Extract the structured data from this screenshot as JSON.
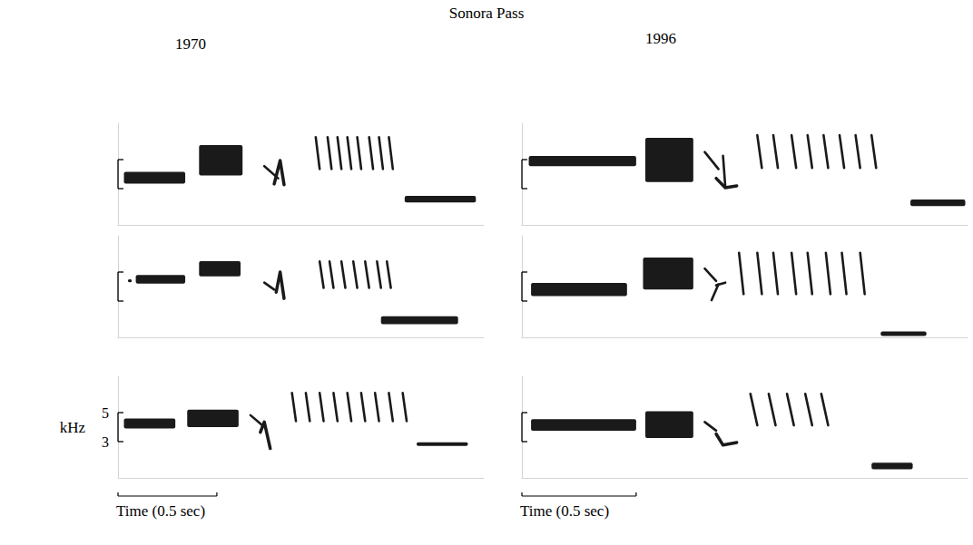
{
  "title": "Sonora Pass",
  "chart_data": [
    {
      "type": "spectrogram",
      "title": "1970",
      "color": "#1a1a1a",
      "xlim": [
        0,
        1.85
      ],
      "ylim": [
        0.5,
        7.5
      ],
      "yticks": [
        3,
        5
      ],
      "tick_labels": false,
      "bands": [
        {
          "t": [
            0.03,
            0.34
          ],
          "f": [
            3.35,
            4.15
          ]
        },
        {
          "t": [
            0.41,
            0.63
          ],
          "f": [
            3.9,
            6.0
          ]
        },
        {
          "t": [
            1.45,
            1.81
          ],
          "f": [
            2.05,
            2.5
          ]
        }
      ],
      "sweeps": [
        [
          [
            0.74,
            4.55
          ],
          [
            0.81,
            3.71
          ]
        ],
        [
          [
            0.79,
            3.32
          ],
          [
            0.82,
            4.94
          ],
          [
            0.84,
            3.26
          ]
        ],
        [
          [
            1.0,
            6.55
          ],
          [
            1.02,
            4.35
          ]
        ],
        [
          [
            1.06,
            6.55
          ],
          [
            1.08,
            4.35
          ]
        ],
        [
          [
            1.11,
            6.55
          ],
          [
            1.13,
            4.35
          ]
        ],
        [
          [
            1.16,
            6.55
          ],
          [
            1.18,
            4.35
          ]
        ],
        [
          [
            1.21,
            6.55
          ],
          [
            1.23,
            4.35
          ]
        ],
        [
          [
            1.27,
            6.55
          ],
          [
            1.29,
            4.35
          ]
        ],
        [
          [
            1.32,
            6.55
          ],
          [
            1.34,
            4.35
          ]
        ],
        [
          [
            1.37,
            6.55
          ],
          [
            1.39,
            4.35
          ]
        ]
      ]
    },
    {
      "type": "spectrogram",
      "title": "1996",
      "color": "#1a1a1a",
      "xlim": [
        0,
        1.95
      ],
      "ylim": [
        0.5,
        7.5
      ],
      "yticks": [
        3,
        5
      ],
      "tick_labels": false,
      "bands": [
        {
          "t": [
            0.03,
            0.5
          ],
          "f": [
            4.55,
            5.25
          ]
        },
        {
          "t": [
            0.54,
            0.75
          ],
          "f": [
            3.45,
            6.5
          ]
        },
        {
          "t": [
            1.7,
            1.94
          ],
          "f": [
            1.8,
            2.25
          ]
        }
      ],
      "sweeps": [
        [
          [
            0.8,
            5.52
          ],
          [
            0.86,
            4.35
          ]
        ],
        [
          [
            0.85,
            3.71
          ],
          [
            0.89,
            3.06
          ],
          [
            0.94,
            3.19
          ]
        ],
        [
          [
            0.88,
            5.26
          ],
          [
            0.89,
            3.13
          ]
        ],
        [
          [
            1.03,
            6.68
          ],
          [
            1.05,
            4.42
          ]
        ],
        [
          [
            1.1,
            6.68
          ],
          [
            1.12,
            4.42
          ]
        ],
        [
          [
            1.18,
            6.68
          ],
          [
            1.2,
            4.42
          ]
        ],
        [
          [
            1.25,
            6.68
          ],
          [
            1.27,
            4.42
          ]
        ],
        [
          [
            1.32,
            6.68
          ],
          [
            1.34,
            4.42
          ]
        ],
        [
          [
            1.39,
            6.68
          ],
          [
            1.41,
            4.42
          ]
        ],
        [
          [
            1.46,
            6.68
          ],
          [
            1.48,
            4.42
          ]
        ],
        [
          [
            1.53,
            6.68
          ],
          [
            1.55,
            4.42
          ]
        ]
      ]
    },
    {
      "type": "spectrogram",
      "color": "#1a1a1a",
      "xlim": [
        0,
        1.85
      ],
      "ylim": [
        0.5,
        7.5
      ],
      "yticks": [
        3,
        5
      ],
      "tick_labels": false,
      "bands": [
        {
          "t": [
            0.05,
            0.07
          ],
          "f": [
            4.3,
            4.5
          ]
        },
        {
          "t": [
            0.09,
            0.34
          ],
          "f": [
            4.2,
            4.8
          ]
        },
        {
          "t": [
            0.41,
            0.62
          ],
          "f": [
            4.7,
            5.75
          ]
        },
        {
          "t": [
            1.33,
            1.72
          ],
          "f": [
            1.4,
            1.95
          ]
        }
      ],
      "sweeps": [
        [
          [
            0.74,
            4.27
          ],
          [
            0.79,
            3.79
          ]
        ],
        [
          [
            0.8,
            3.61
          ],
          [
            0.82,
            5.0
          ],
          [
            0.84,
            3.18
          ]
        ],
        [
          [
            1.02,
            5.73
          ],
          [
            1.04,
            3.91
          ]
        ],
        [
          [
            1.07,
            5.73
          ],
          [
            1.09,
            3.91
          ]
        ],
        [
          [
            1.13,
            5.73
          ],
          [
            1.15,
            3.91
          ]
        ],
        [
          [
            1.19,
            5.73
          ],
          [
            1.21,
            3.91
          ]
        ],
        [
          [
            1.25,
            5.73
          ],
          [
            1.27,
            3.91
          ]
        ],
        [
          [
            1.31,
            5.73
          ],
          [
            1.33,
            3.91
          ]
        ],
        [
          [
            1.36,
            5.73
          ],
          [
            1.38,
            3.91
          ]
        ]
      ]
    },
    {
      "type": "spectrogram",
      "color": "#1a1a1a",
      "xlim": [
        0,
        1.95
      ],
      "ylim": [
        0.5,
        7.5
      ],
      "yticks": [
        3,
        5
      ],
      "tick_labels": false,
      "bands": [
        {
          "t": [
            0.04,
            0.46
          ],
          "f": [
            3.35,
            4.25
          ]
        },
        {
          "t": [
            0.53,
            0.75
          ],
          "f": [
            3.8,
            6.0
          ]
        },
        {
          "t": [
            1.57,
            1.77
          ],
          "f": [
            0.6,
            0.9
          ]
        }
      ],
      "sweeps": [
        [
          [
            0.8,
            5.24
          ],
          [
            0.85,
            4.39
          ]
        ],
        [
          [
            0.86,
            4.15
          ],
          [
            0.83,
            3.06
          ]
        ],
        [
          [
            0.85,
            4.09
          ],
          [
            0.89,
            4.27
          ]
        ],
        [
          [
            0.95,
            6.33
          ],
          [
            0.97,
            3.48
          ]
        ],
        [
          [
            1.03,
            6.33
          ],
          [
            1.05,
            3.48
          ]
        ],
        [
          [
            1.1,
            6.33
          ],
          [
            1.12,
            3.48
          ]
        ],
        [
          [
            1.18,
            6.33
          ],
          [
            1.2,
            3.48
          ]
        ],
        [
          [
            1.25,
            6.33
          ],
          [
            1.27,
            3.48
          ]
        ],
        [
          [
            1.33,
            6.33
          ],
          [
            1.35,
            3.48
          ]
        ],
        [
          [
            1.4,
            6.33
          ],
          [
            1.42,
            3.48
          ]
        ],
        [
          [
            1.48,
            6.33
          ],
          [
            1.5,
            3.48
          ]
        ]
      ]
    },
    {
      "type": "spectrogram",
      "color": "#1a1a1a",
      "ylabel": "kHz",
      "xlim": [
        0,
        1.85
      ],
      "ylim": [
        0.5,
        7.5
      ],
      "yticks": [
        3,
        5
      ],
      "tick_labels": "y",
      "scale_bar": {
        "x": [
          0,
          0.5
        ],
        "label": "Time (0.5 sec)"
      },
      "bands": [
        {
          "t": [
            0.03,
            0.29
          ],
          "f": [
            3.9,
            4.6
          ]
        },
        {
          "t": [
            0.35,
            0.61
          ],
          "f": [
            4.0,
            5.2
          ]
        },
        {
          "t": [
            1.51,
            1.77
          ],
          "f": [
            2.7,
            2.95
          ]
        }
      ],
      "sweeps": [
        [
          [
            0.67,
            4.82
          ],
          [
            0.73,
            4.12
          ]
        ],
        [
          [
            0.72,
            3.65
          ],
          [
            0.74,
            4.35
          ],
          [
            0.77,
            2.53
          ]
        ],
        [
          [
            0.88,
            6.35
          ],
          [
            0.9,
            4.41
          ]
        ],
        [
          [
            0.95,
            6.35
          ],
          [
            0.97,
            4.41
          ]
        ],
        [
          [
            1.02,
            6.35
          ],
          [
            1.04,
            4.41
          ]
        ],
        [
          [
            1.09,
            6.35
          ],
          [
            1.11,
            4.41
          ]
        ],
        [
          [
            1.16,
            6.35
          ],
          [
            1.18,
            4.41
          ]
        ],
        [
          [
            1.23,
            6.35
          ],
          [
            1.25,
            4.41
          ]
        ],
        [
          [
            1.3,
            6.35
          ],
          [
            1.32,
            4.41
          ]
        ],
        [
          [
            1.37,
            6.35
          ],
          [
            1.39,
            4.41
          ]
        ],
        [
          [
            1.44,
            6.35
          ],
          [
            1.46,
            4.41
          ]
        ]
      ]
    },
    {
      "type": "spectrogram",
      "color": "#1a1a1a",
      "xlim": [
        0,
        1.95
      ],
      "ylim": [
        0.5,
        7.5
      ],
      "yticks": [
        3,
        5
      ],
      "tick_labels": false,
      "scale_bar": {
        "x": [
          0,
          0.5
        ],
        "label": "Time (0.5 sec)"
      },
      "bands": [
        {
          "t": [
            0.04,
            0.5
          ],
          "f": [
            3.75,
            4.55
          ]
        },
        {
          "t": [
            0.54,
            0.75
          ],
          "f": [
            3.25,
            5.1
          ]
        },
        {
          "t": [
            1.53,
            1.71
          ],
          "f": [
            1.1,
            1.55
          ]
        }
      ],
      "sweeps": [
        [
          [
            0.8,
            4.35
          ],
          [
            0.85,
            3.76
          ]
        ],
        [
          [
            0.85,
            3.53
          ],
          [
            0.88,
            2.76
          ],
          [
            0.94,
            2.94
          ]
        ],
        [
          [
            1.0,
            6.29
          ],
          [
            1.03,
            4.12
          ]
        ],
        [
          [
            1.08,
            6.29
          ],
          [
            1.11,
            4.12
          ]
        ],
        [
          [
            1.16,
            6.29
          ],
          [
            1.19,
            4.12
          ]
        ],
        [
          [
            1.24,
            6.29
          ],
          [
            1.27,
            4.12
          ]
        ],
        [
          [
            1.31,
            6.29
          ],
          [
            1.34,
            4.12
          ]
        ]
      ]
    }
  ]
}
